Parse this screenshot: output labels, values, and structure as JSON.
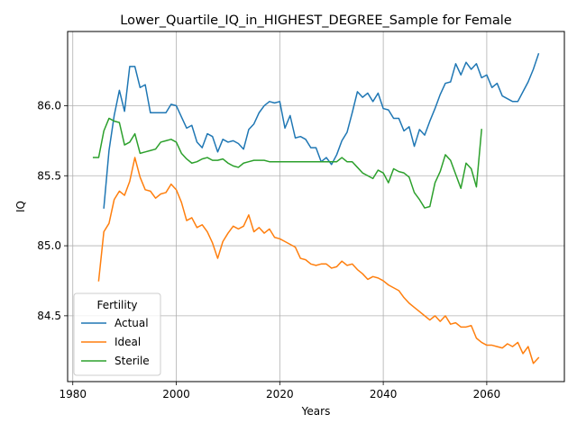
{
  "chart_data": {
    "type": "line",
    "title": "Lower_Quartile_IQ_in_HIGHEST_DEGREE_Sample for Female",
    "xlabel": "Years",
    "ylabel": "IQ",
    "xlim": [
      1979,
      2075
    ],
    "ylim": [
      84.03,
      86.53
    ],
    "xticks": [
      1980,
      2000,
      2020,
      2040,
      2060
    ],
    "yticks": [
      84.5,
      85.0,
      85.5,
      86.0
    ],
    "ytick_labels": [
      "84.5",
      "85.0",
      "85.5",
      "86.0"
    ],
    "grid": true,
    "legend": {
      "title": "Fertility",
      "position": "lower-left"
    },
    "series": [
      {
        "name": "Actual",
        "color": "#1f77b4",
        "x": [
          1986,
          1987,
          1988,
          1989,
          1990,
          1991,
          1992,
          1993,
          1994,
          1995,
          1996,
          1997,
          1998,
          1999,
          2000,
          2001,
          2002,
          2003,
          2004,
          2005,
          2006,
          2007,
          2008,
          2009,
          2010,
          2011,
          2012,
          2013,
          2014,
          2015,
          2016,
          2017,
          2018,
          2019,
          2020,
          2021,
          2022,
          2023,
          2024,
          2025,
          2026,
          2027,
          2028,
          2029,
          2030,
          2031,
          2032,
          2033,
          2034,
          2035,
          2036,
          2037,
          2038,
          2039,
          2040,
          2041,
          2042,
          2043,
          2044,
          2045,
          2046,
          2047,
          2048,
          2049,
          2050,
          2051,
          2052,
          2053,
          2054,
          2055,
          2056,
          2057,
          2058,
          2059,
          2060,
          2061,
          2062,
          2063,
          2064,
          2065,
          2066,
          2067,
          2068,
          2069,
          2070
        ],
        "values": [
          85.27,
          85.68,
          85.93,
          86.11,
          85.96,
          86.28,
          86.28,
          86.13,
          86.15,
          85.95,
          85.95,
          85.95,
          85.95,
          86.01,
          86.0,
          85.92,
          85.84,
          85.86,
          85.74,
          85.7,
          85.8,
          85.78,
          85.67,
          85.76,
          85.74,
          85.75,
          85.73,
          85.69,
          85.83,
          85.87,
          85.95,
          86.0,
          86.03,
          86.02,
          86.03,
          85.84,
          85.93,
          85.77,
          85.78,
          85.76,
          85.7,
          85.7,
          85.6,
          85.63,
          85.58,
          85.65,
          85.75,
          85.81,
          85.95,
          86.1,
          86.06,
          86.09,
          86.03,
          86.09,
          85.98,
          85.97,
          85.91,
          85.91,
          85.82,
          85.85,
          85.71,
          85.83,
          85.79,
          85.89,
          85.98,
          86.08,
          86.16,
          86.17,
          86.3,
          86.22,
          86.31,
          86.26,
          86.3,
          86.2,
          86.22,
          86.13,
          86.16,
          86.07,
          86.05,
          86.03,
          86.03,
          86.1,
          86.17,
          86.26,
          86.37
        ]
      },
      {
        "name": "Ideal",
        "color": "#ff7f0e",
        "x": [
          1985,
          1986,
          1987,
          1988,
          1989,
          1990,
          1991,
          1992,
          1993,
          1994,
          1995,
          1996,
          1997,
          1998,
          1999,
          2000,
          2001,
          2002,
          2003,
          2004,
          2005,
          2006,
          2007,
          2008,
          2009,
          2010,
          2011,
          2012,
          2013,
          2014,
          2015,
          2016,
          2017,
          2018,
          2019,
          2020,
          2021,
          2022,
          2023,
          2024,
          2025,
          2026,
          2027,
          2028,
          2029,
          2030,
          2031,
          2032,
          2033,
          2034,
          2035,
          2036,
          2037,
          2038,
          2039,
          2040,
          2041,
          2042,
          2043,
          2044,
          2045,
          2046,
          2047,
          2048,
          2049,
          2050,
          2051,
          2052,
          2053,
          2054,
          2055,
          2056,
          2057,
          2058,
          2059,
          2060,
          2061,
          2062,
          2063,
          2064,
          2065,
          2066,
          2067,
          2068,
          2069,
          2070
        ],
        "values": [
          84.75,
          85.1,
          85.16,
          85.33,
          85.39,
          85.36,
          85.46,
          85.63,
          85.49,
          85.4,
          85.39,
          85.34,
          85.37,
          85.38,
          85.44,
          85.4,
          85.31,
          85.18,
          85.2,
          85.13,
          85.15,
          85.1,
          85.02,
          84.91,
          85.03,
          85.09,
          85.14,
          85.12,
          85.14,
          85.22,
          85.1,
          85.13,
          85.09,
          85.12,
          85.06,
          85.05,
          85.03,
          85.01,
          84.99,
          84.91,
          84.9,
          84.87,
          84.86,
          84.87,
          84.87,
          84.84,
          84.85,
          84.89,
          84.86,
          84.87,
          84.83,
          84.8,
          84.76,
          84.78,
          84.77,
          84.75,
          84.72,
          84.7,
          84.68,
          84.63,
          84.59,
          84.56,
          84.53,
          84.5,
          84.47,
          84.5,
          84.46,
          84.5,
          84.44,
          84.45,
          84.42,
          84.42,
          84.43,
          84.34,
          84.31,
          84.29,
          84.29,
          84.28,
          84.27,
          84.3,
          84.28,
          84.31,
          84.23,
          84.28,
          84.16,
          84.2
        ]
      },
      {
        "name": "Sterile",
        "color": "#2ca02c",
        "x": [
          1984,
          1985,
          1986,
          1987,
          1988,
          1989,
          1990,
          1991,
          1992,
          1993,
          1994,
          1995,
          1996,
          1997,
          1998,
          1999,
          2000,
          2001,
          2002,
          2003,
          2004,
          2005,
          2006,
          2007,
          2008,
          2009,
          2010,
          2011,
          2012,
          2013,
          2014,
          2015,
          2016,
          2017,
          2018,
          2019,
          2020,
          2021,
          2022,
          2023,
          2024,
          2025,
          2026,
          2027,
          2028,
          2029,
          2030,
          2031,
          2032,
          2033,
          2034,
          2035,
          2036,
          2037,
          2038,
          2039,
          2040,
          2041,
          2042,
          2043,
          2044,
          2045,
          2046,
          2047,
          2048,
          2049,
          2050,
          2051,
          2052,
          2053,
          2054,
          2055,
          2056,
          2057,
          2058,
          2059
        ],
        "values": [
          85.63,
          85.63,
          85.82,
          85.91,
          85.89,
          85.88,
          85.72,
          85.74,
          85.8,
          85.66,
          85.67,
          85.68,
          85.69,
          85.74,
          85.75,
          85.76,
          85.74,
          85.66,
          85.62,
          85.59,
          85.6,
          85.62,
          85.63,
          85.61,
          85.61,
          85.62,
          85.59,
          85.57,
          85.56,
          85.59,
          85.6,
          85.61,
          85.61,
          85.61,
          85.6,
          85.6,
          85.6,
          85.6,
          85.6,
          85.6,
          85.6,
          85.6,
          85.6,
          85.6,
          85.6,
          85.6,
          85.6,
          85.6,
          85.63,
          85.6,
          85.6,
          85.56,
          85.52,
          85.5,
          85.48,
          85.54,
          85.52,
          85.45,
          85.55,
          85.53,
          85.52,
          85.49,
          85.38,
          85.33,
          85.27,
          85.28,
          85.45,
          85.53,
          85.65,
          85.61,
          85.51,
          85.41,
          85.59,
          85.55,
          85.42,
          85.83
        ]
      }
    ]
  }
}
